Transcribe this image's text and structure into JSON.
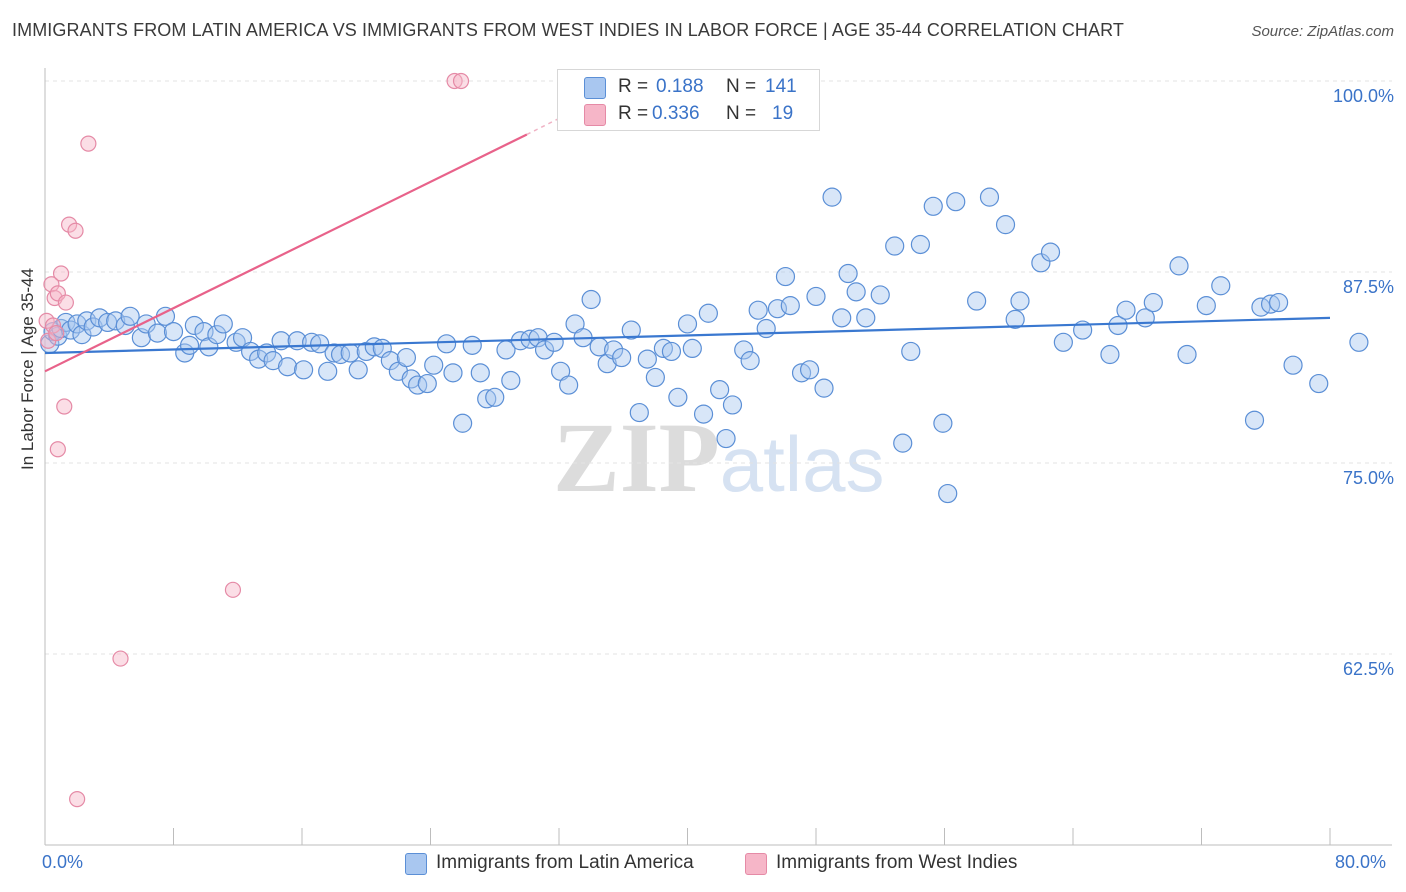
{
  "title": "IMMIGRANTS FROM LATIN AMERICA VS IMMIGRANTS FROM WEST INDIES IN LABOR FORCE | AGE 35-44 CORRELATION CHART",
  "source": "Source: ZipAtlas.com",
  "watermark": {
    "zip": "ZIP",
    "atlas": "atlas"
  },
  "legend": {
    "rows": [
      {
        "r_label": "R =",
        "r_value": "0.188",
        "n_label": "N =",
        "n_value": "141",
        "color": "#a9c7f0"
      },
      {
        "r_label": "R =",
        "r_value": "0.336",
        "n_label": "N =",
        "n_value": "19",
        "color": "#f6b6c8"
      }
    ]
  },
  "colors": {
    "blue_fill": "#a9c7f0",
    "blue_stroke": "#5b8fd6",
    "blue_line": "#3a78d0",
    "pink_fill": "#f6b6c8",
    "pink_stroke": "#e58aa6",
    "pink_line": "#e8628a",
    "grid": "#e3e3e3",
    "tick_text": "#3a73c8"
  },
  "chart_data": {
    "type": "scatter",
    "title": "IMMIGRANTS FROM LATIN AMERICA VS IMMIGRANTS FROM WEST INDIES IN LABOR FORCE | AGE 35-44 CORRELATION CHART",
    "xlabel": "",
    "ylabel": "In Labor Force | Age 35-44",
    "xlim": [
      0,
      80
    ],
    "ylim": [
      50,
      100
    ],
    "x_tick_labels": [
      "0.0%",
      "80.0%"
    ],
    "y_tick_labels": [
      "100.0%",
      "87.5%",
      "75.0%",
      "62.5%"
    ],
    "y_ticks": [
      100,
      87.5,
      75,
      62.5
    ],
    "grid": true,
    "legend_position": "top-center",
    "series": [
      {
        "name": "Immigrants from Latin America",
        "r": 0.188,
        "n": 141,
        "trend": {
          "x": [
            0,
            80
          ],
          "y": [
            82.2,
            84.5
          ]
        },
        "points": [
          [
            0.3,
            82.8
          ],
          [
            0.5,
            83.6
          ],
          [
            0.8,
            83.3
          ],
          [
            1.0,
            83.8
          ],
          [
            1.3,
            84.2
          ],
          [
            1.6,
            83.7
          ],
          [
            2.0,
            84.1
          ],
          [
            2.3,
            83.4
          ],
          [
            2.6,
            84.3
          ],
          [
            3.0,
            83.9
          ],
          [
            3.4,
            84.5
          ],
          [
            3.9,
            84.2
          ],
          [
            4.4,
            84.3
          ],
          [
            5.0,
            84.0
          ],
          [
            5.3,
            84.6
          ],
          [
            6.0,
            83.2
          ],
          [
            6.3,
            84.1
          ],
          [
            7.0,
            83.5
          ],
          [
            7.5,
            84.6
          ],
          [
            8.0,
            83.6
          ],
          [
            8.7,
            82.2
          ],
          [
            9.0,
            82.7
          ],
          [
            9.3,
            84.0
          ],
          [
            9.9,
            83.6
          ],
          [
            10.2,
            82.6
          ],
          [
            10.7,
            83.4
          ],
          [
            11.1,
            84.1
          ],
          [
            11.9,
            82.9
          ],
          [
            12.3,
            83.2
          ],
          [
            12.8,
            82.3
          ],
          [
            13.3,
            81.8
          ],
          [
            13.8,
            82.2
          ],
          [
            14.2,
            81.7
          ],
          [
            14.7,
            83.0
          ],
          [
            15.1,
            81.3
          ],
          [
            15.7,
            83.0
          ],
          [
            16.1,
            81.1
          ],
          [
            16.6,
            82.9
          ],
          [
            17.1,
            82.8
          ],
          [
            17.6,
            81.0
          ],
          [
            18.0,
            82.2
          ],
          [
            18.4,
            82.1
          ],
          [
            19.0,
            82.2
          ],
          [
            19.5,
            81.1
          ],
          [
            20.0,
            82.3
          ],
          [
            20.5,
            82.6
          ],
          [
            21.0,
            82.5
          ],
          [
            21.5,
            81.7
          ],
          [
            22.0,
            81.0
          ],
          [
            22.5,
            81.9
          ],
          [
            22.8,
            80.5
          ],
          [
            23.2,
            80.1
          ],
          [
            23.8,
            80.2
          ],
          [
            24.2,
            81.4
          ],
          [
            25.0,
            82.8
          ],
          [
            25.4,
            80.9
          ],
          [
            26.0,
            77.6
          ],
          [
            26.6,
            82.7
          ],
          [
            27.1,
            80.9
          ],
          [
            27.5,
            79.2
          ],
          [
            28.0,
            79.3
          ],
          [
            28.7,
            82.4
          ],
          [
            29.0,
            80.4
          ],
          [
            29.6,
            83.0
          ],
          [
            30.2,
            83.1
          ],
          [
            30.7,
            83.2
          ],
          [
            31.1,
            82.4
          ],
          [
            31.7,
            82.9
          ],
          [
            32.1,
            81.0
          ],
          [
            32.6,
            80.1
          ],
          [
            33.0,
            84.1
          ],
          [
            33.5,
            83.2
          ],
          [
            34.0,
            85.7
          ],
          [
            34.5,
            82.6
          ],
          [
            35.0,
            81.5
          ],
          [
            35.4,
            82.4
          ],
          [
            35.9,
            81.9
          ],
          [
            36.5,
            83.7
          ],
          [
            37.0,
            78.3
          ],
          [
            37.5,
            81.8
          ],
          [
            38.0,
            80.6
          ],
          [
            38.5,
            82.5
          ],
          [
            39.0,
            82.3
          ],
          [
            39.4,
            79.3
          ],
          [
            40.0,
            84.1
          ],
          [
            40.3,
            82.5
          ],
          [
            41.0,
            78.2
          ],
          [
            41.3,
            84.8
          ],
          [
            42.0,
            79.8
          ],
          [
            42.4,
            76.6
          ],
          [
            42.8,
            78.8
          ],
          [
            43.5,
            82.4
          ],
          [
            43.9,
            81.7
          ],
          [
            44.4,
            85.0
          ],
          [
            44.9,
            83.8
          ],
          [
            45.6,
            85.1
          ],
          [
            46.1,
            87.2
          ],
          [
            46.4,
            85.3
          ],
          [
            47.1,
            80.9
          ],
          [
            47.6,
            81.1
          ],
          [
            48.0,
            85.9
          ],
          [
            48.5,
            79.9
          ],
          [
            49.0,
            92.4
          ],
          [
            49.6,
            84.5
          ],
          [
            50.0,
            87.4
          ],
          [
            50.5,
            86.2
          ],
          [
            51.1,
            84.5
          ],
          [
            52.0,
            86.0
          ],
          [
            52.9,
            89.2
          ],
          [
            53.4,
            76.3
          ],
          [
            53.9,
            82.3
          ],
          [
            54.5,
            89.3
          ],
          [
            55.3,
            91.8
          ],
          [
            55.9,
            77.6
          ],
          [
            56.2,
            73.0
          ],
          [
            56.7,
            92.1
          ],
          [
            58.0,
            85.6
          ],
          [
            58.8,
            92.4
          ],
          [
            59.8,
            90.6
          ],
          [
            60.4,
            84.4
          ],
          [
            60.7,
            85.6
          ],
          [
            62.0,
            88.1
          ],
          [
            62.6,
            88.8
          ],
          [
            63.4,
            82.9
          ],
          [
            64.6,
            83.7
          ],
          [
            66.3,
            82.1
          ],
          [
            66.8,
            84.0
          ],
          [
            67.3,
            85.0
          ],
          [
            68.5,
            84.5
          ],
          [
            69.0,
            85.5
          ],
          [
            70.6,
            87.9
          ],
          [
            71.1,
            82.1
          ],
          [
            72.3,
            85.3
          ],
          [
            73.2,
            86.6
          ],
          [
            75.3,
            77.8
          ],
          [
            75.7,
            85.2
          ],
          [
            76.3,
            85.4
          ],
          [
            76.8,
            85.5
          ],
          [
            77.7,
            81.4
          ],
          [
            79.3,
            80.2
          ],
          [
            81.8,
            82.9
          ]
        ]
      },
      {
        "name": "Immigrants from West Indies",
        "r": 0.336,
        "n": 19,
        "trend": {
          "x": [
            0,
            30
          ],
          "y": [
            81.0,
            96.5
          ]
        },
        "trend_dashed": {
          "x": [
            30,
            34
          ],
          "y": [
            96.5,
            98.6
          ]
        },
        "points": [
          [
            0.1,
            84.3
          ],
          [
            0.2,
            83.0
          ],
          [
            0.4,
            86.7
          ],
          [
            0.6,
            85.8
          ],
          [
            0.8,
            86.1
          ],
          [
            1.0,
            87.4
          ],
          [
            1.3,
            85.5
          ],
          [
            1.5,
            90.6
          ],
          [
            1.9,
            90.2
          ],
          [
            0.5,
            84.0
          ],
          [
            0.7,
            83.5
          ],
          [
            1.2,
            78.7
          ],
          [
            0.8,
            75.9
          ],
          [
            2.7,
            95.9
          ],
          [
            25.5,
            100.0
          ],
          [
            25.9,
            100.0
          ],
          [
            11.7,
            66.7
          ],
          [
            4.7,
            62.2
          ],
          [
            2.0,
            53.0
          ]
        ]
      }
    ]
  },
  "axes": {
    "y_axis_label": "In Labor Force | Age 35-44",
    "x_left_label": "0.0%",
    "x_right_label": "80.0%"
  },
  "bottom_legend": [
    {
      "label": "Immigrants from Latin America",
      "color": "#a9c7f0"
    },
    {
      "label": "Immigrants from West Indies",
      "color": "#f6b6c8"
    }
  ]
}
